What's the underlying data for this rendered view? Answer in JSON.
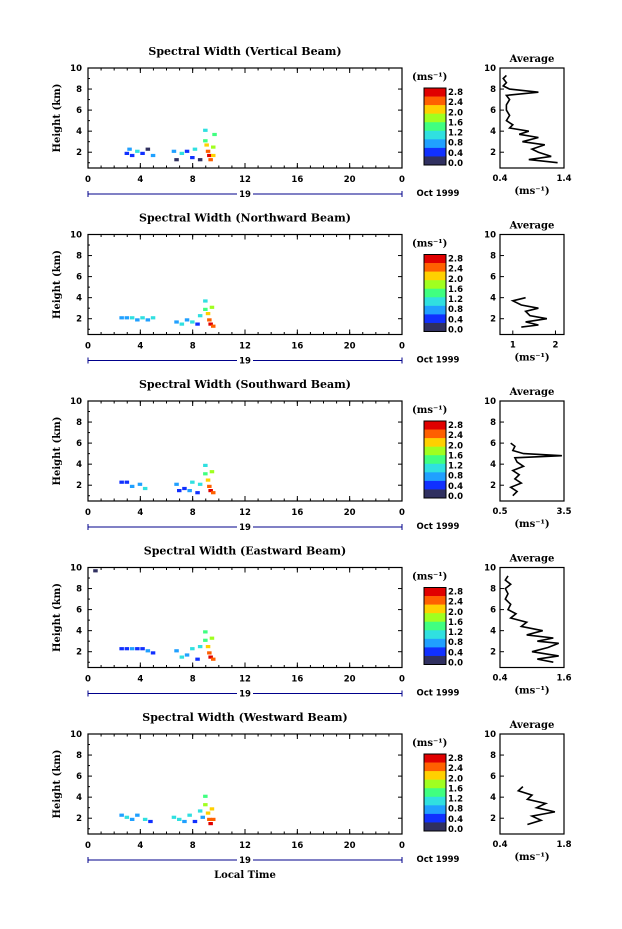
{
  "figure": {
    "common_xlabel": "Local Time",
    "x_ticks": [
      "0",
      "4",
      "8",
      "12",
      "16",
      "20",
      "0"
    ],
    "date_number": "19",
    "date_label": "Oct 1999",
    "ylabel": "Height (km)",
    "y_ticks": [
      "2",
      "4",
      "6",
      "8",
      "10"
    ],
    "colorbar_unit": "(ms⁻¹)",
    "colorbar_ticks": [
      "0.0",
      "0.4",
      "0.8",
      "1.2",
      "1.6",
      "2.0",
      "2.4",
      "2.8"
    ],
    "colorbar_colors": [
      "#303060",
      "#1030ff",
      "#20a0ff",
      "#30e0e0",
      "#40ff80",
      "#a0ff20",
      "#ffd000",
      "#ff6000",
      "#e00000"
    ],
    "average_title": "Average",
    "average_unit": "(ms⁻¹)"
  },
  "chart_data": [
    {
      "type": "heatmap",
      "title": "Spectral Width (Vertical Beam)",
      "xlabel": "Local Time",
      "ylabel": "Height (km)",
      "xlim": [
        0,
        24
      ],
      "ylim": [
        0.5,
        10
      ],
      "colorbar_range": [
        0.0,
        3.0
      ],
      "cells": [
        [
          2.8,
          1.8,
          0.5
        ],
        [
          3.0,
          2.2,
          0.8
        ],
        [
          3.2,
          1.6,
          0.4
        ],
        [
          3.6,
          2.0,
          1.0
        ],
        [
          4.0,
          1.8,
          0.6
        ],
        [
          4.4,
          2.2,
          0.3
        ],
        [
          4.8,
          1.6,
          0.9
        ],
        [
          6.4,
          2.0,
          0.7
        ],
        [
          6.6,
          1.2,
          0.2
        ],
        [
          7.0,
          1.8,
          1.0
        ],
        [
          7.4,
          2.0,
          0.5
        ],
        [
          7.8,
          1.4,
          0.4
        ],
        [
          8.0,
          2.2,
          1.3
        ],
        [
          8.4,
          1.2,
          0.3
        ],
        [
          8.8,
          4.0,
          1.2
        ],
        [
          8.8,
          3.0,
          1.6
        ],
        [
          8.9,
          2.6,
          2.0
        ],
        [
          9.0,
          2.0,
          2.4
        ],
        [
          9.1,
          1.6,
          2.8
        ],
        [
          9.2,
          1.2,
          2.6
        ],
        [
          9.4,
          1.6,
          2.2
        ],
        [
          9.4,
          2.4,
          1.8
        ],
        [
          9.5,
          3.6,
          1.4
        ]
      ],
      "average": {
        "title": "Average",
        "xlabel": "(ms⁻¹)",
        "xlim": [
          0.4,
          1.4
        ],
        "x_ticks": [
          0.4,
          1.4
        ],
        "ylim": [
          0.5,
          10
        ],
        "profile": [
          [
            1.3,
            1.0
          ],
          [
            0.85,
            1.3
          ],
          [
            1.2,
            1.6
          ],
          [
            1.0,
            2.0
          ],
          [
            0.9,
            2.3
          ],
          [
            1.1,
            2.7
          ],
          [
            0.75,
            3.0
          ],
          [
            1.0,
            3.4
          ],
          [
            0.7,
            3.7
          ],
          [
            0.85,
            4.0
          ],
          [
            0.55,
            4.3
          ],
          [
            0.6,
            4.6
          ],
          [
            0.5,
            5.0
          ],
          [
            0.55,
            5.5
          ],
          [
            0.5,
            6.0
          ],
          [
            0.5,
            6.5
          ],
          [
            0.55,
            7.0
          ],
          [
            0.5,
            7.4
          ],
          [
            1.0,
            7.7
          ],
          [
            0.55,
            8.0
          ],
          [
            0.45,
            8.3
          ],
          [
            0.5,
            8.6
          ],
          [
            0.45,
            9.0
          ],
          [
            0.5,
            9.3
          ]
        ]
      }
    },
    {
      "type": "heatmap",
      "title": "Spectral Width (Northward Beam)",
      "xlabel": "Local Time",
      "ylabel": "Height (km)",
      "xlim": [
        0,
        24
      ],
      "ylim": [
        0.5,
        10
      ],
      "colorbar_range": [
        0.0,
        3.0
      ],
      "cells": [
        [
          2.4,
          2.0,
          0.8
        ],
        [
          2.8,
          2.0,
          0.9
        ],
        [
          3.2,
          2.0,
          1.0
        ],
        [
          3.6,
          1.8,
          0.7
        ],
        [
          4.0,
          2.0,
          1.1
        ],
        [
          4.4,
          1.8,
          0.8
        ],
        [
          4.8,
          2.0,
          1.0
        ],
        [
          6.6,
          1.6,
          0.8
        ],
        [
          7.0,
          1.4,
          1.0
        ],
        [
          7.4,
          1.8,
          0.9
        ],
        [
          7.8,
          1.6,
          1.2
        ],
        [
          8.2,
          1.4,
          0.6
        ],
        [
          8.4,
          2.2,
          1.0
        ],
        [
          8.8,
          3.6,
          1.2
        ],
        [
          8.8,
          2.8,
          1.6
        ],
        [
          9.0,
          2.4,
          2.0
        ],
        [
          9.1,
          1.8,
          2.4
        ],
        [
          9.2,
          1.4,
          2.8
        ],
        [
          9.4,
          1.2,
          2.6
        ],
        [
          9.3,
          3.0,
          1.8
        ]
      ],
      "average": {
        "title": "Average",
        "xlabel": "(ms⁻¹)",
        "xlim": [
          0.7,
          2.2
        ],
        "x_ticks": [
          1,
          2
        ],
        "ylim": [
          0.5,
          10
        ],
        "profile": [
          [
            1.2,
            1.2
          ],
          [
            1.6,
            1.4
          ],
          [
            1.3,
            1.7
          ],
          [
            1.8,
            2.0
          ],
          [
            1.4,
            2.3
          ],
          [
            1.3,
            2.7
          ],
          [
            1.6,
            3.0
          ],
          [
            1.2,
            3.3
          ],
          [
            1.0,
            3.7
          ],
          [
            1.3,
            4.0
          ]
        ]
      }
    },
    {
      "type": "heatmap",
      "title": "Spectral Width (Southward Beam)",
      "xlabel": "Local Time",
      "ylabel": "Height (km)",
      "xlim": [
        0,
        24
      ],
      "ylim": [
        0.5,
        10
      ],
      "colorbar_range": [
        0.0,
        3.0
      ],
      "cells": [
        [
          2.4,
          2.2,
          0.6
        ],
        [
          2.8,
          2.2,
          0.5
        ],
        [
          3.2,
          1.8,
          0.7
        ],
        [
          3.8,
          2.0,
          0.9
        ],
        [
          4.2,
          1.6,
          1.0
        ],
        [
          6.6,
          2.0,
          0.8
        ],
        [
          6.8,
          1.4,
          0.6
        ],
        [
          7.2,
          1.6,
          0.4
        ],
        [
          7.6,
          1.4,
          0.9
        ],
        [
          7.8,
          2.2,
          1.1
        ],
        [
          8.2,
          1.2,
          0.5
        ],
        [
          8.4,
          2.0,
          1.2
        ],
        [
          8.8,
          3.8,
          1.3
        ],
        [
          8.8,
          3.0,
          1.6
        ],
        [
          9.0,
          2.4,
          2.0
        ],
        [
          9.1,
          1.8,
          2.5
        ],
        [
          9.2,
          1.4,
          2.8
        ],
        [
          9.4,
          1.2,
          2.4
        ],
        [
          9.3,
          3.2,
          1.8
        ]
      ],
      "average": {
        "title": "Average",
        "xlabel": "(ms⁻¹)",
        "xlim": [
          0.5,
          3.5
        ],
        "x_ticks": [
          0.5,
          3.5
        ],
        "ylim": [
          0.5,
          10
        ],
        "profile": [
          [
            1.1,
            1.0
          ],
          [
            1.3,
            1.4
          ],
          [
            1.0,
            1.8
          ],
          [
            1.5,
            2.2
          ],
          [
            1.2,
            2.6
          ],
          [
            1.4,
            3.0
          ],
          [
            1.1,
            3.4
          ],
          [
            1.6,
            3.8
          ],
          [
            1.3,
            4.2
          ],
          [
            1.2,
            4.6
          ],
          [
            3.4,
            4.8
          ],
          [
            1.6,
            5.0
          ],
          [
            1.1,
            5.3
          ],
          [
            1.2,
            5.7
          ],
          [
            1.0,
            6.0
          ]
        ]
      }
    },
    {
      "type": "heatmap",
      "title": "Spectral Width (Eastward Beam)",
      "xlabel": "Local Time",
      "ylabel": "Height (km)",
      "xlim": [
        0,
        24
      ],
      "ylim": [
        0.5,
        10
      ],
      "colorbar_range": [
        0.0,
        3.0
      ],
      "cells": [
        [
          0.4,
          9.6,
          0.2
        ],
        [
          2.4,
          2.2,
          0.6
        ],
        [
          2.8,
          2.2,
          0.5
        ],
        [
          3.2,
          2.2,
          0.7
        ],
        [
          3.6,
          2.2,
          0.4
        ],
        [
          4.0,
          2.2,
          0.6
        ],
        [
          4.4,
          2.0,
          0.8
        ],
        [
          4.8,
          1.8,
          0.6
        ],
        [
          6.6,
          2.0,
          0.8
        ],
        [
          7.0,
          1.4,
          1.0
        ],
        [
          7.4,
          1.6,
          0.7
        ],
        [
          7.8,
          2.2,
          1.1
        ],
        [
          8.2,
          1.2,
          0.6
        ],
        [
          8.4,
          2.4,
          1.0
        ],
        [
          8.8,
          3.8,
          1.4
        ],
        [
          8.8,
          3.0,
          1.6
        ],
        [
          9.0,
          2.4,
          2.0
        ],
        [
          9.1,
          1.8,
          2.5
        ],
        [
          9.2,
          1.4,
          2.8
        ],
        [
          9.4,
          1.2,
          2.4
        ],
        [
          9.3,
          3.2,
          1.8
        ]
      ],
      "average": {
        "title": "Average",
        "xlabel": "(ms⁻¹)",
        "xlim": [
          0.4,
          1.6
        ],
        "x_ticks": [
          0.4,
          1.6
        ],
        "ylim": [
          0.5,
          10
        ],
        "profile": [
          [
            1.4,
            1.0
          ],
          [
            1.1,
            1.3
          ],
          [
            1.5,
            1.6
          ],
          [
            1.0,
            2.0
          ],
          [
            1.3,
            2.4
          ],
          [
            1.5,
            2.8
          ],
          [
            1.1,
            3.0
          ],
          [
            1.4,
            3.3
          ],
          [
            0.9,
            3.6
          ],
          [
            1.2,
            4.0
          ],
          [
            0.8,
            4.4
          ],
          [
            0.9,
            4.8
          ],
          [
            0.6,
            5.2
          ],
          [
            0.7,
            5.6
          ],
          [
            0.55,
            6.0
          ],
          [
            0.6,
            6.5
          ],
          [
            0.5,
            7.0
          ],
          [
            0.55,
            7.5
          ],
          [
            0.5,
            8.0
          ],
          [
            0.6,
            8.4
          ],
          [
            0.5,
            8.8
          ],
          [
            0.55,
            9.2
          ]
        ]
      }
    },
    {
      "type": "heatmap",
      "title": "Spectral Width (Westward Beam)",
      "xlabel": "Local Time",
      "ylabel": "Height (km)",
      "xlim": [
        0,
        24
      ],
      "ylim": [
        0.5,
        10
      ],
      "colorbar_range": [
        0.0,
        3.0
      ],
      "cells": [
        [
          2.4,
          2.2,
          0.8
        ],
        [
          2.8,
          2.0,
          1.0
        ],
        [
          3.2,
          1.8,
          0.7
        ],
        [
          3.6,
          2.2,
          0.9
        ],
        [
          4.2,
          1.8,
          1.2
        ],
        [
          4.6,
          1.6,
          0.6
        ],
        [
          6.4,
          2.0,
          1.0
        ],
        [
          6.8,
          1.8,
          1.3
        ],
        [
          7.2,
          1.6,
          0.8
        ],
        [
          7.6,
          2.2,
          1.1
        ],
        [
          8.0,
          1.6,
          0.6
        ],
        [
          8.4,
          2.6,
          1.2
        ],
        [
          8.6,
          2.0,
          0.9
        ],
        [
          8.8,
          4.0,
          1.4
        ],
        [
          8.8,
          3.2,
          1.8
        ],
        [
          9.0,
          2.4,
          2.2
        ],
        [
          9.1,
          1.8,
          2.6
        ],
        [
          9.2,
          1.4,
          2.8
        ],
        [
          9.4,
          1.8,
          2.4
        ],
        [
          9.3,
          2.8,
          2.0
        ]
      ],
      "average": {
        "title": "Average",
        "xlabel": "(ms⁻¹)",
        "xlim": [
          0.4,
          1.8
        ],
        "x_ticks": [
          0.4,
          1.8
        ],
        "ylim": [
          0.5,
          10
        ],
        "profile": [
          [
            1.0,
            1.4
          ],
          [
            1.3,
            1.8
          ],
          [
            1.1,
            2.2
          ],
          [
            1.6,
            2.6
          ],
          [
            1.2,
            3.0
          ],
          [
            1.4,
            3.4
          ],
          [
            1.0,
            3.8
          ],
          [
            1.1,
            4.2
          ],
          [
            0.8,
            4.6
          ],
          [
            0.9,
            5.0
          ]
        ]
      }
    }
  ]
}
